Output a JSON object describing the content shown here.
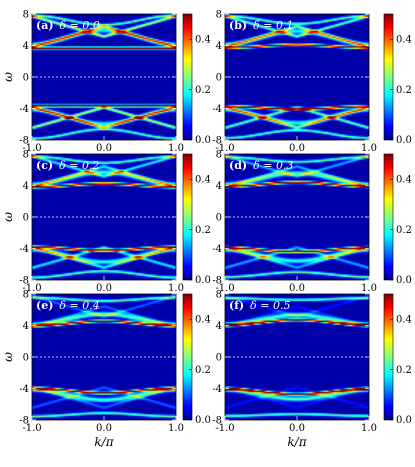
{
  "chart_data": {
    "type": "heatmap",
    "xlabel": "k/π",
    "ylabel": "ω",
    "xlim": [
      -1.0,
      1.0
    ],
    "ylim": [
      -8,
      8
    ],
    "x_ticks": [
      "-1.0",
      "0.0",
      "1.0"
    ],
    "y_ticks": [
      "-8",
      "-4",
      "0",
      "4",
      "8"
    ],
    "colorbar": {
      "range": [
        0.0,
        0.5
      ],
      "ticks": [
        "0.0",
        "0.2",
        "0.4"
      ],
      "colormap": "jet"
    },
    "zero_line": {
      "omega": 0,
      "style": "dashed",
      "color": "#ffffff"
    },
    "panels": [
      {
        "label": "(a)",
        "delta_text": "δ = 0.0",
        "delta": 0.0
      },
      {
        "label": "(b)",
        "delta_text": "δ = 0.1",
        "delta": 0.1
      },
      {
        "label": "(c)",
        "delta_text": "δ = 0.2",
        "delta": 0.2
      },
      {
        "label": "(d)",
        "delta_text": "δ = 0.3",
        "delta": 0.3
      },
      {
        "label": "(e)",
        "delta_text": "δ = 0.4",
        "delta": 0.4
      },
      {
        "label": "(f)",
        "delta_text": "δ = 0.5",
        "delta": 0.5
      }
    ]
  }
}
